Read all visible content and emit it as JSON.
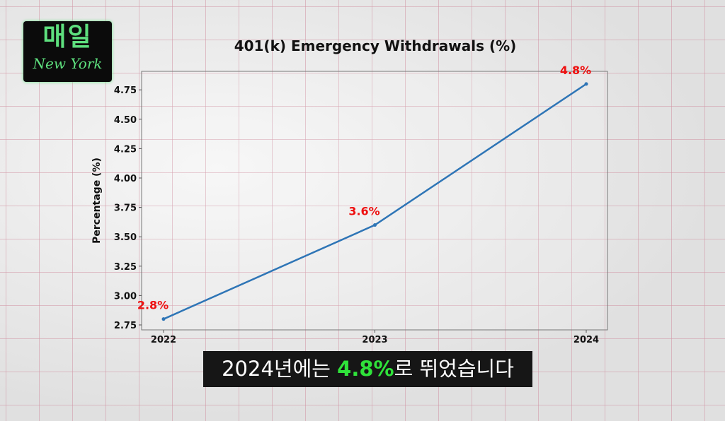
{
  "logo": {
    "korean": "매일",
    "english": "New York"
  },
  "subtitle": {
    "before": "2024년에는 ",
    "highlight": "4.8%",
    "after": "로 뛰었습니다"
  },
  "chart_data": {
    "type": "line",
    "title": "401(k) Emergency Withdrawals (%)",
    "xlabel": "",
    "ylabel": "Percentage (%)",
    "x": [
      "2022",
      "2023",
      "2024"
    ],
    "values": [
      2.8,
      3.6,
      4.8
    ],
    "data_labels": [
      "2.8%",
      "3.6%",
      "4.8%"
    ],
    "ylim": [
      2.7,
      4.85
    ],
    "yticks": [
      "2.75",
      "3.00",
      "3.25",
      "3.50",
      "3.75",
      "4.00",
      "4.25",
      "4.50",
      "4.75"
    ],
    "grid": false,
    "line_color": "#2e75b6",
    "label_color": "#ee1111"
  }
}
